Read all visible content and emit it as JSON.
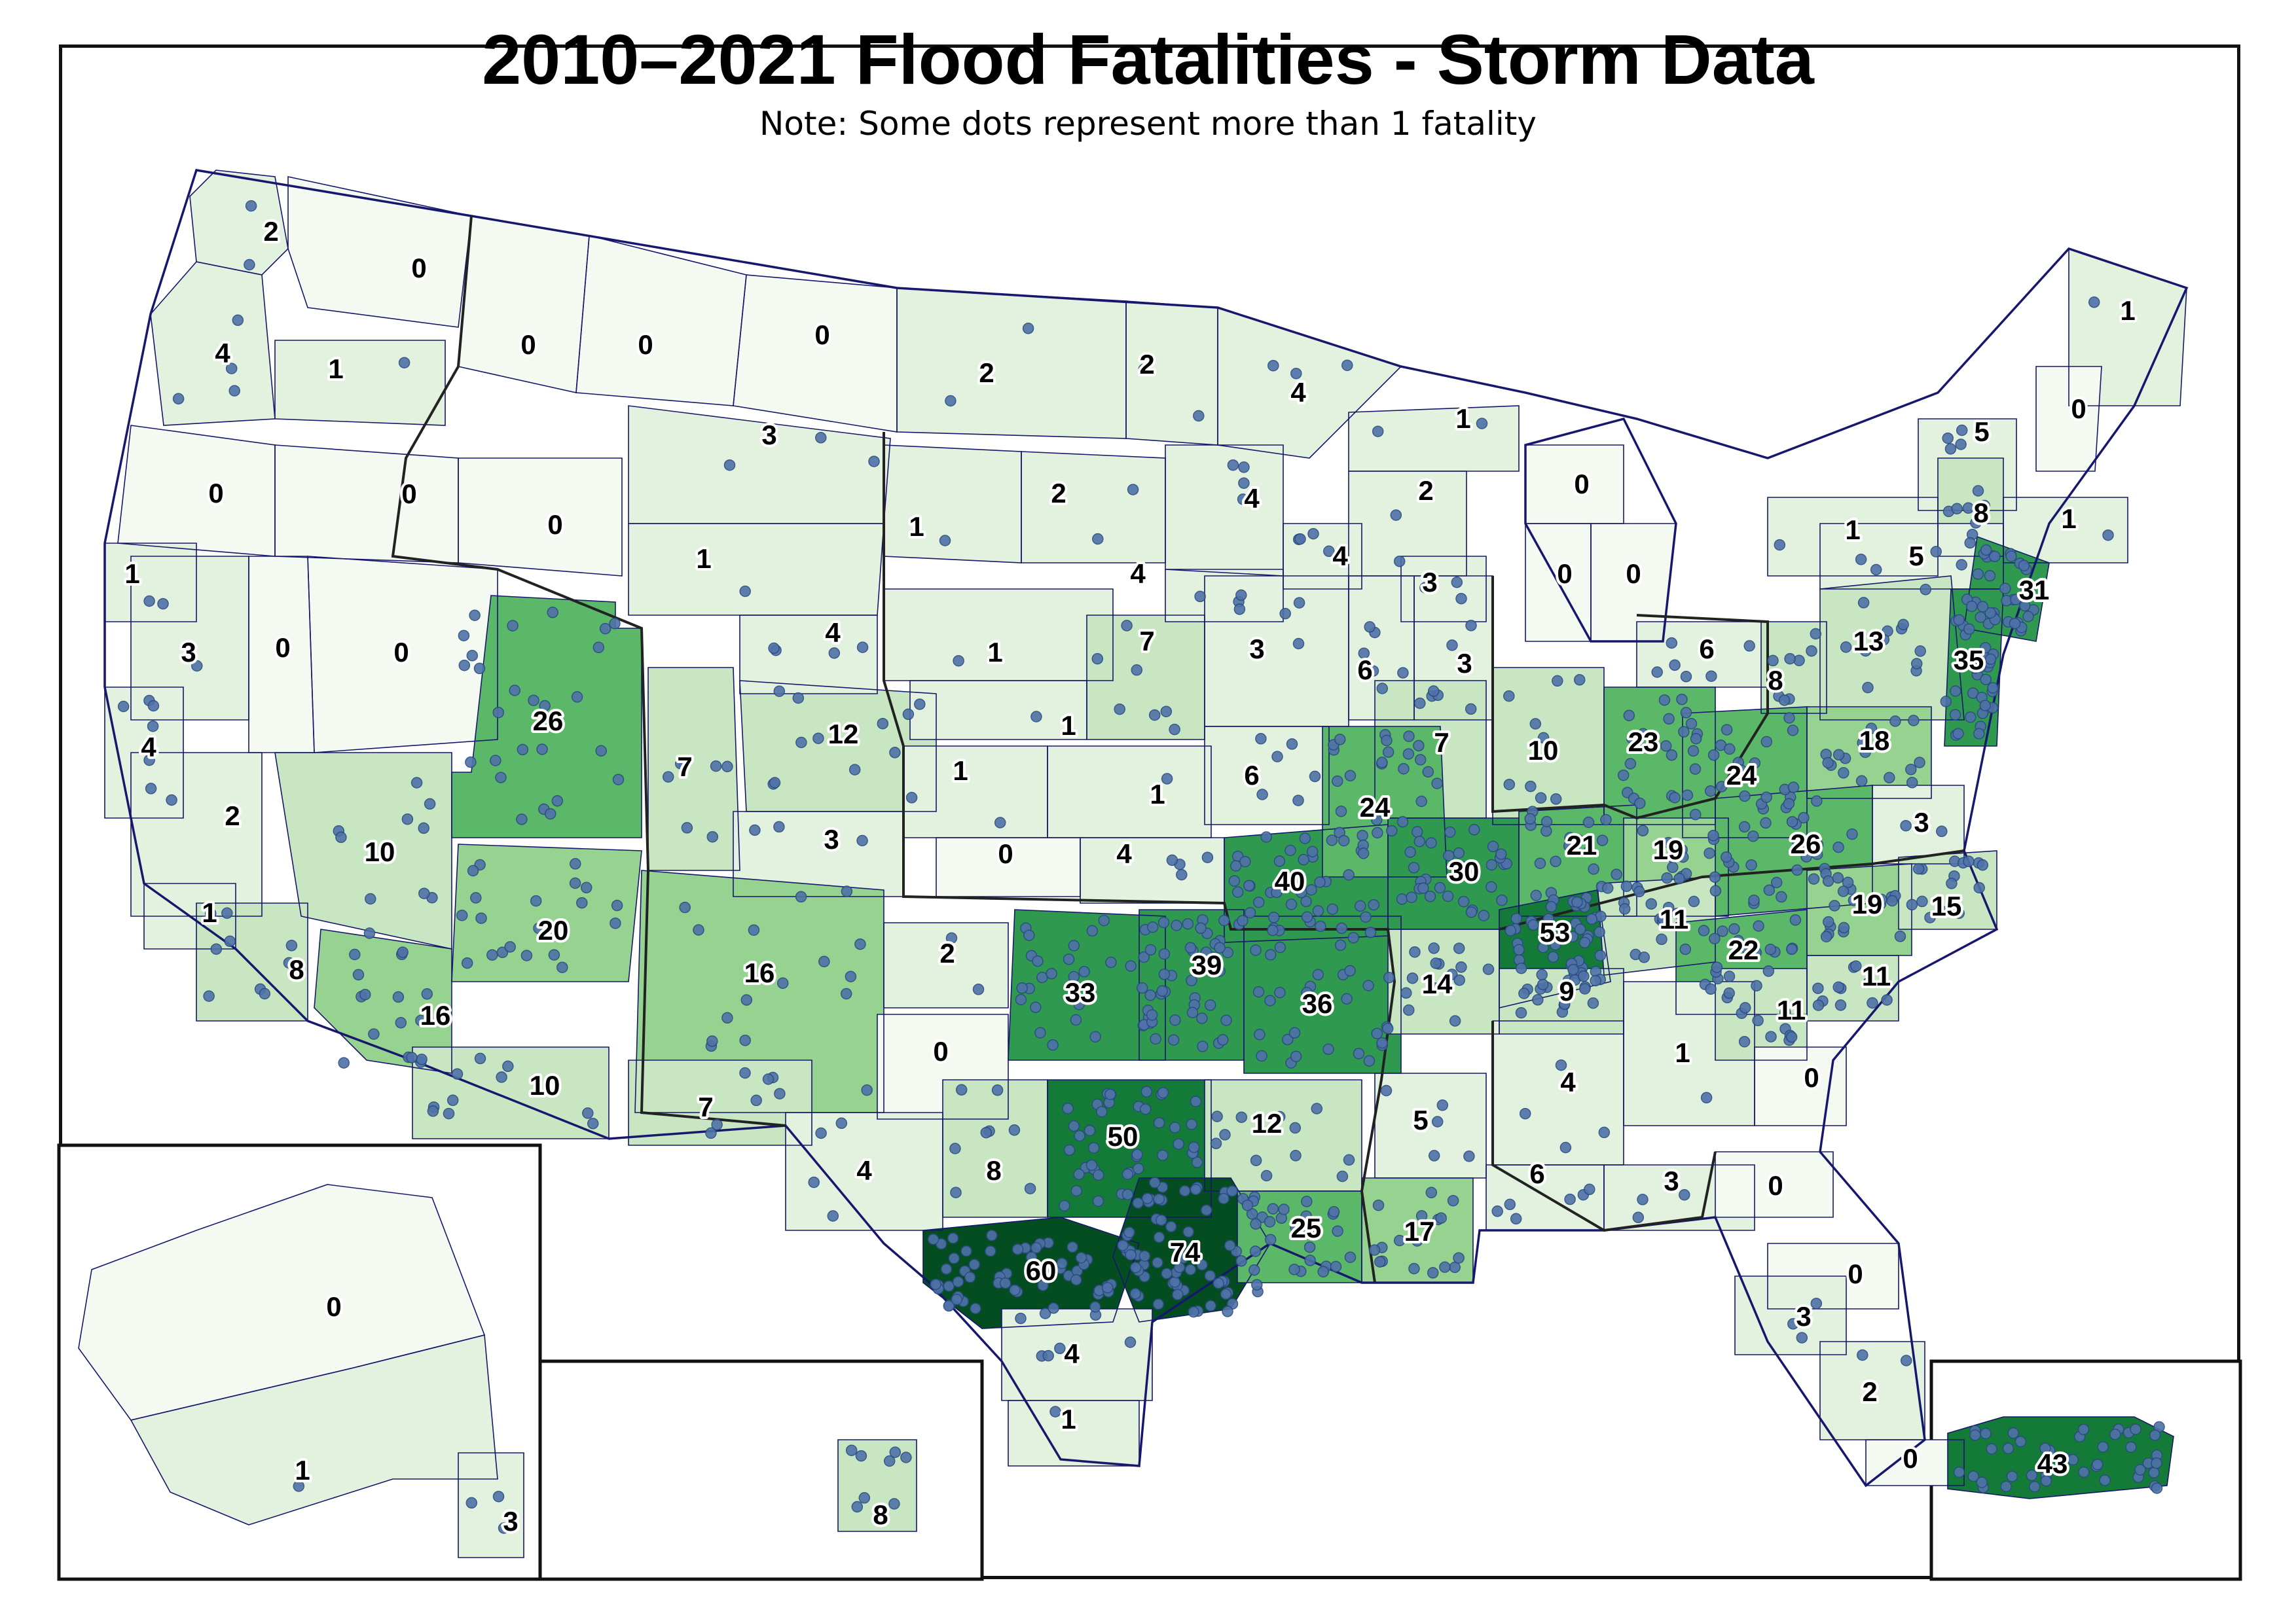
{
  "title": "2010–2021 Flood Fatalities - Storm Data",
  "subtitle": "Note: Some dots represent more than 1 fatality",
  "colors": {
    "frame": "#111111",
    "state_boundary": "#17176e",
    "region_boundary": "#222222",
    "dot": "#4f72a8",
    "dot_stroke": "#2a4a80",
    "zero": "#f4faf2",
    "low": "#e2f2de",
    "lowmid": "#c8e6c2",
    "mid": "#96d290",
    "midhigh": "#5cb869",
    "high": "#2f9a4f",
    "veryhigh": "#137a38",
    "top": "#034d21"
  },
  "regions": [
    {
      "id": "wa-w",
      "value": 2
    },
    {
      "id": "wa-e",
      "value": 0
    },
    {
      "id": "or-nw",
      "value": 4
    },
    {
      "id": "wa-sw",
      "value": 1
    },
    {
      "id": "mt-w",
      "value": 0
    },
    {
      "id": "mt-c",
      "value": 0
    },
    {
      "id": "mt-e",
      "value": 0
    },
    {
      "id": "nd-w",
      "value": 2
    },
    {
      "id": "nd-e",
      "value": 2
    },
    {
      "id": "mn-n",
      "value": 4
    },
    {
      "id": "wi-n",
      "value": 1
    },
    {
      "id": "mi-u",
      "value": 0
    },
    {
      "id": "me",
      "value": 1
    },
    {
      "id": "nh",
      "value": 0
    },
    {
      "id": "or-s",
      "value": 0
    },
    {
      "id": "id-s",
      "value": 0
    },
    {
      "id": "id-e",
      "value": 0
    },
    {
      "id": "wy-n",
      "value": 3
    },
    {
      "id": "sd-w",
      "value": 1
    },
    {
      "id": "sd-e",
      "value": 2
    },
    {
      "id": "mn-s",
      "value": 4
    },
    {
      "id": "wi-c",
      "value": 2
    },
    {
      "id": "mi-l",
      "value": 0
    },
    {
      "id": "mi-le",
      "value": 0
    },
    {
      "id": "ny-e",
      "value": 5
    },
    {
      "id": "vt",
      "value": 8
    },
    {
      "id": "ma",
      "value": 1
    },
    {
      "id": "ny-w",
      "value": 1
    },
    {
      "id": "ny-s",
      "value": 5
    },
    {
      "id": "ca-n",
      "value": 1
    },
    {
      "id": "ca-nc",
      "value": 3
    },
    {
      "id": "nv-w",
      "value": 0
    },
    {
      "id": "nv-e",
      "value": 0
    },
    {
      "id": "wy-s",
      "value": 1
    },
    {
      "id": "ne-w",
      "value": 1
    },
    {
      "id": "ne-e",
      "value": 7
    },
    {
      "id": "ia-w",
      "value": 4
    },
    {
      "id": "ia-e",
      "value": 3
    },
    {
      "id": "il-n",
      "value": 6
    },
    {
      "id": "il-ne",
      "value": 3
    },
    {
      "id": "wi-s",
      "value": 4
    },
    {
      "id": "mi-s",
      "value": 3
    },
    {
      "id": "oh-n",
      "value": 6
    },
    {
      "id": "pa-e",
      "value": 13
    },
    {
      "id": "pa-w",
      "value": 8
    },
    {
      "id": "ct",
      "value": 31
    },
    {
      "id": "nj",
      "value": 35
    },
    {
      "id": "ca-sf",
      "value": 4
    },
    {
      "id": "ca-c",
      "value": 2
    },
    {
      "id": "ut",
      "value": 26
    },
    {
      "id": "co-w",
      "value": 7
    },
    {
      "id": "co-ne",
      "value": 12
    },
    {
      "id": "co-e",
      "value": 4
    },
    {
      "id": "ne-s",
      "value": 1
    },
    {
      "id": "ks-nw",
      "value": 1
    },
    {
      "id": "ks-ne",
      "value": 1
    },
    {
      "id": "mo-n",
      "value": 6
    },
    {
      "id": "il-s",
      "value": 7
    },
    {
      "id": "in",
      "value": 10
    },
    {
      "id": "oh",
      "value": 23
    },
    {
      "id": "wv",
      "value": 24
    },
    {
      "id": "md",
      "value": 18
    },
    {
      "id": "nv-s",
      "value": 10
    },
    {
      "id": "co-s",
      "value": 3
    },
    {
      "id": "ks-w",
      "value": 0
    },
    {
      "id": "ks-e",
      "value": 4
    },
    {
      "id": "mo",
      "value": 40
    },
    {
      "id": "il-sw",
      "value": 24
    },
    {
      "id": "ky-w",
      "value": 30
    },
    {
      "id": "ky",
      "value": 21
    },
    {
      "id": "ky-e",
      "value": 19
    },
    {
      "id": "va",
      "value": 26
    },
    {
      "id": "va-e",
      "value": 3
    },
    {
      "id": "ca-sc",
      "value": 1
    },
    {
      "id": "ca-s",
      "value": 8
    },
    {
      "id": "az-n",
      "value": 20
    },
    {
      "id": "nm-n",
      "value": 16
    },
    {
      "id": "ok-w",
      "value": 2
    },
    {
      "id": "ok",
      "value": 33
    },
    {
      "id": "ok-e",
      "value": 39
    },
    {
      "id": "ar",
      "value": 36
    },
    {
      "id": "tn-w",
      "value": 14
    },
    {
      "id": "tn",
      "value": 53
    },
    {
      "id": "tn-e",
      "value": 11
    },
    {
      "id": "nc-w",
      "value": 22
    },
    {
      "id": "nc",
      "value": 19
    },
    {
      "id": "nc-e",
      "value": 15
    },
    {
      "id": "az-w",
      "value": 16
    },
    {
      "id": "tx-pan",
      "value": 0
    },
    {
      "id": "az-s",
      "value": 10
    },
    {
      "id": "nm-s",
      "value": 7
    },
    {
      "id": "tx-w",
      "value": 4
    },
    {
      "id": "tx-nw",
      "value": 8
    },
    {
      "id": "tx-n",
      "value": 50
    },
    {
      "id": "la-n",
      "value": 12
    },
    {
      "id": "ms",
      "value": 5
    },
    {
      "id": "al-n",
      "value": 4
    },
    {
      "id": "ga-n",
      "value": 1
    },
    {
      "id": "ga",
      "value": 9
    },
    {
      "id": "sc",
      "value": 11
    },
    {
      "id": "sc-e",
      "value": 11
    },
    {
      "id": "ga-se",
      "value": 0
    },
    {
      "id": "tx-c",
      "value": 60
    },
    {
      "id": "tx-se",
      "value": 74
    },
    {
      "id": "la",
      "value": 25
    },
    {
      "id": "la-se",
      "value": 17
    },
    {
      "id": "al-s",
      "value": 6
    },
    {
      "id": "fl-n",
      "value": 3
    },
    {
      "id": "fl-ne",
      "value": 0
    },
    {
      "id": "fl-c",
      "value": 0
    },
    {
      "id": "fl-w",
      "value": 3
    },
    {
      "id": "tx-s",
      "value": 4
    },
    {
      "id": "tx-ss",
      "value": 1
    },
    {
      "id": "fl-s",
      "value": 2
    },
    {
      "id": "fl-k",
      "value": 0
    },
    {
      "id": "ak",
      "value": 0
    },
    {
      "id": "ak-s",
      "value": 1
    },
    {
      "id": "ak-se",
      "value": 3
    },
    {
      "id": "hi",
      "value": 8
    },
    {
      "id": "pr",
      "value": 43
    }
  ]
}
